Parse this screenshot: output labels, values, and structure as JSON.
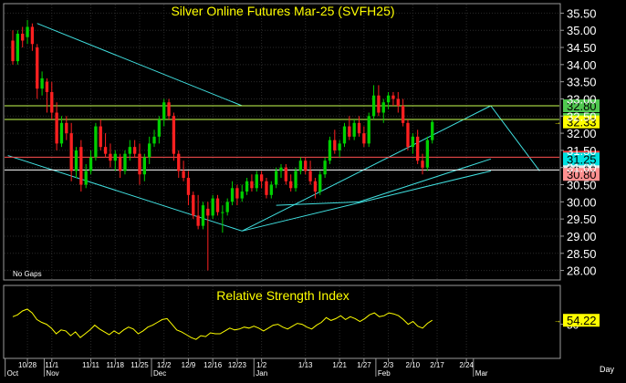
{
  "chart_data": [
    {
      "type": "candlestick",
      "title": "Silver Online Futures Mar-25 (SVFH25)",
      "note": "No Gaps",
      "ylim": [
        27.75,
        35.75
      ],
      "y_ticks": [
        {
          "value": 35.5,
          "label": "35.50"
        },
        {
          "value": 35.0,
          "label": "35.00"
        },
        {
          "value": 34.5,
          "label": "34.50"
        },
        {
          "value": 34.0,
          "label": "34.00"
        },
        {
          "value": 33.5,
          "label": "33.50"
        },
        {
          "value": 33.0,
          "label": "33.00"
        },
        {
          "value": 32.5,
          "label": "32.50"
        },
        {
          "value": 32.0,
          "label": "32.00"
        },
        {
          "value": 31.5,
          "label": "31.50"
        },
        {
          "value": 31.0,
          "label": "31.00"
        },
        {
          "value": 30.5,
          "label": "30.50"
        },
        {
          "value": 30.0,
          "label": "30.00"
        },
        {
          "value": 29.5,
          "label": "29.50"
        },
        {
          "value": 29.0,
          "label": "29.00"
        },
        {
          "value": 28.5,
          "label": "28.50"
        },
        {
          "value": 28.0,
          "label": "28.00"
        }
      ],
      "grid": true,
      "bullish_color": "#00d000",
      "bearish_color": "#ff2020",
      "candles": [
        {
          "o": 34.7,
          "h": 35.0,
          "l": 34.0,
          "c": 34.1
        },
        {
          "o": 34.1,
          "h": 35.0,
          "l": 34.0,
          "c": 34.9
        },
        {
          "o": 34.9,
          "h": 35.1,
          "l": 34.5,
          "c": 34.7
        },
        {
          "o": 34.8,
          "h": 35.3,
          "l": 34.6,
          "c": 35.1
        },
        {
          "o": 35.1,
          "h": 35.2,
          "l": 34.4,
          "c": 34.6
        },
        {
          "o": 34.5,
          "h": 34.6,
          "l": 33.0,
          "c": 33.3
        },
        {
          "o": 33.3,
          "h": 33.8,
          "l": 33.1,
          "c": 33.6
        },
        {
          "o": 33.5,
          "h": 33.6,
          "l": 32.6,
          "c": 33.2
        },
        {
          "o": 33.2,
          "h": 33.5,
          "l": 32.4,
          "c": 32.6
        },
        {
          "o": 32.6,
          "h": 32.9,
          "l": 31.5,
          "c": 31.7
        },
        {
          "o": 31.7,
          "h": 32.5,
          "l": 31.6,
          "c": 32.3
        },
        {
          "o": 32.3,
          "h": 32.5,
          "l": 31.8,
          "c": 32.0
        },
        {
          "o": 32.0,
          "h": 32.3,
          "l": 30.6,
          "c": 30.9
        },
        {
          "o": 30.9,
          "h": 31.6,
          "l": 30.7,
          "c": 31.5
        },
        {
          "o": 31.6,
          "h": 31.8,
          "l": 30.3,
          "c": 30.5
        },
        {
          "o": 30.5,
          "h": 31.1,
          "l": 30.4,
          "c": 30.9
        },
        {
          "o": 30.9,
          "h": 31.5,
          "l": 30.8,
          "c": 31.3
        },
        {
          "o": 31.3,
          "h": 32.3,
          "l": 31.2,
          "c": 32.2
        },
        {
          "o": 32.2,
          "h": 32.4,
          "l": 31.5,
          "c": 31.6
        },
        {
          "o": 31.6,
          "h": 32.0,
          "l": 31.3,
          "c": 31.4
        },
        {
          "o": 31.4,
          "h": 31.7,
          "l": 31.0,
          "c": 31.2
        },
        {
          "o": 31.2,
          "h": 31.5,
          "l": 30.9,
          "c": 31.4
        },
        {
          "o": 31.3,
          "h": 31.4,
          "l": 30.7,
          "c": 30.9
        },
        {
          "o": 30.9,
          "h": 31.5,
          "l": 30.8,
          "c": 31.4
        },
        {
          "o": 31.4,
          "h": 31.8,
          "l": 31.2,
          "c": 31.6
        },
        {
          "o": 31.6,
          "h": 31.8,
          "l": 31.3,
          "c": 31.4
        },
        {
          "o": 31.4,
          "h": 31.7,
          "l": 30.5,
          "c": 30.8
        },
        {
          "o": 30.8,
          "h": 31.4,
          "l": 30.6,
          "c": 31.3
        },
        {
          "o": 31.3,
          "h": 31.9,
          "l": 31.1,
          "c": 31.7
        },
        {
          "o": 31.7,
          "h": 32.1,
          "l": 31.6,
          "c": 31.9
        },
        {
          "o": 31.9,
          "h": 32.5,
          "l": 31.7,
          "c": 32.4
        },
        {
          "o": 32.4,
          "h": 33.0,
          "l": 32.2,
          "c": 32.9
        },
        {
          "o": 32.9,
          "h": 33.0,
          "l": 32.4,
          "c": 32.5
        },
        {
          "o": 32.5,
          "h": 32.6,
          "l": 31.2,
          "c": 31.4
        },
        {
          "o": 31.4,
          "h": 31.5,
          "l": 30.7,
          "c": 30.9
        },
        {
          "o": 30.9,
          "h": 31.2,
          "l": 30.6,
          "c": 30.7
        },
        {
          "o": 30.7,
          "h": 30.9,
          "l": 29.9,
          "c": 30.2
        },
        {
          "o": 30.2,
          "h": 30.3,
          "l": 29.5,
          "c": 29.6
        },
        {
          "o": 29.6,
          "h": 30.2,
          "l": 29.2,
          "c": 29.3
        },
        {
          "o": 29.3,
          "h": 30.0,
          "l": 29.2,
          "c": 29.9
        },
        {
          "o": 29.8,
          "h": 30.0,
          "l": 28.0,
          "c": 29.6
        },
        {
          "o": 29.6,
          "h": 30.2,
          "l": 29.5,
          "c": 30.1
        },
        {
          "o": 30.1,
          "h": 30.2,
          "l": 29.6,
          "c": 29.7
        },
        {
          "o": 29.7,
          "h": 29.9,
          "l": 29.1,
          "c": 29.7
        },
        {
          "o": 29.7,
          "h": 30.1,
          "l": 29.6,
          "c": 30.0
        },
        {
          "o": 30.0,
          "h": 30.6,
          "l": 29.9,
          "c": 30.4
        },
        {
          "o": 30.4,
          "h": 30.5,
          "l": 29.9,
          "c": 30.1
        },
        {
          "o": 30.1,
          "h": 30.5,
          "l": 30.0,
          "c": 30.3
        },
        {
          "o": 30.3,
          "h": 30.7,
          "l": 30.2,
          "c": 30.6
        },
        {
          "o": 30.6,
          "h": 30.8,
          "l": 30.3,
          "c": 30.4
        },
        {
          "o": 30.4,
          "h": 30.9,
          "l": 30.3,
          "c": 30.8
        },
        {
          "o": 30.8,
          "h": 30.9,
          "l": 30.4,
          "c": 30.6
        },
        {
          "o": 30.6,
          "h": 30.7,
          "l": 30.1,
          "c": 30.2
        },
        {
          "o": 30.2,
          "h": 30.6,
          "l": 30.1,
          "c": 30.5
        },
        {
          "o": 30.5,
          "h": 31.0,
          "l": 30.4,
          "c": 30.9
        },
        {
          "o": 30.9,
          "h": 31.1,
          "l": 30.7,
          "c": 31.0
        },
        {
          "o": 31.0,
          "h": 31.1,
          "l": 30.5,
          "c": 30.6
        },
        {
          "o": 30.6,
          "h": 30.8,
          "l": 30.3,
          "c": 30.4
        },
        {
          "o": 30.4,
          "h": 31.0,
          "l": 30.3,
          "c": 30.9
        },
        {
          "o": 30.9,
          "h": 31.3,
          "l": 30.8,
          "c": 31.2
        },
        {
          "o": 31.2,
          "h": 31.3,
          "l": 30.8,
          "c": 30.9
        },
        {
          "o": 30.9,
          "h": 31.2,
          "l": 30.5,
          "c": 30.6
        },
        {
          "o": 30.6,
          "h": 30.7,
          "l": 30.1,
          "c": 30.3
        },
        {
          "o": 30.3,
          "h": 30.9,
          "l": 30.2,
          "c": 30.8
        },
        {
          "o": 30.8,
          "h": 31.3,
          "l": 30.7,
          "c": 31.2
        },
        {
          "o": 31.2,
          "h": 31.9,
          "l": 31.1,
          "c": 31.8
        },
        {
          "o": 31.8,
          "h": 32.1,
          "l": 31.4,
          "c": 31.5
        },
        {
          "o": 31.5,
          "h": 31.8,
          "l": 31.3,
          "c": 31.7
        },
        {
          "o": 31.7,
          "h": 32.3,
          "l": 31.6,
          "c": 32.2
        },
        {
          "o": 32.2,
          "h": 32.5,
          "l": 31.8,
          "c": 31.9
        },
        {
          "o": 31.9,
          "h": 32.4,
          "l": 31.8,
          "c": 32.3
        },
        {
          "o": 32.3,
          "h": 32.5,
          "l": 31.9,
          "c": 32.0
        },
        {
          "o": 32.0,
          "h": 32.2,
          "l": 31.6,
          "c": 31.7
        },
        {
          "o": 31.7,
          "h": 32.6,
          "l": 31.6,
          "c": 32.5
        },
        {
          "o": 32.5,
          "h": 33.4,
          "l": 32.4,
          "c": 33.1
        },
        {
          "o": 33.1,
          "h": 33.4,
          "l": 32.5,
          "c": 32.6
        },
        {
          "o": 32.6,
          "h": 33.0,
          "l": 32.3,
          "c": 32.9
        },
        {
          "o": 32.9,
          "h": 33.2,
          "l": 32.7,
          "c": 33.1
        },
        {
          "o": 33.1,
          "h": 33.2,
          "l": 32.8,
          "c": 33.0
        },
        {
          "o": 33.0,
          "h": 33.2,
          "l": 32.6,
          "c": 32.8
        },
        {
          "o": 32.8,
          "h": 33.0,
          "l": 32.2,
          "c": 32.3
        },
        {
          "o": 32.3,
          "h": 32.4,
          "l": 31.5,
          "c": 31.6
        },
        {
          "o": 31.6,
          "h": 32.0,
          "l": 31.4,
          "c": 31.9
        },
        {
          "o": 31.9,
          "h": 32.1,
          "l": 31.1,
          "c": 31.2
        },
        {
          "o": 31.2,
          "h": 31.4,
          "l": 30.8,
          "c": 31.0
        },
        {
          "o": 31.0,
          "h": 31.9,
          "l": 30.9,
          "c": 31.8
        },
        {
          "o": 31.8,
          "h": 32.4,
          "l": 31.7,
          "c": 32.33
        }
      ],
      "horizontal_lines": [
        {
          "value": 32.8,
          "label": "32.80",
          "line_color": "#c8ff50",
          "badge_color": "#50c850"
        },
        {
          "value": 32.4,
          "label": "32.40",
          "line_color": "#c8ff50",
          "badge_color": "#50c850"
        },
        {
          "value": 31.3,
          "label": "31.30",
          "line_color": "#ff5050",
          "badge_color": "#ff4040"
        },
        {
          "value": 30.93,
          "label": "30.93",
          "line_color": "#ffffff",
          "badge_color": "#e8e8e8"
        }
      ],
      "badges": [
        {
          "value": 32.33,
          "label": "32.33",
          "color": "#ffff00"
        },
        {
          "value": 31.25,
          "label": "31.25",
          "color": "#00e0e0"
        },
        {
          "value": 30.8,
          "label": "30.80",
          "color": "#ff9090"
        }
      ],
      "trendlines": [
        {
          "from": {
            "bar": 6,
            "value": 35.2
          },
          "to": {
            "bar": 48,
            "value": 32.8
          }
        },
        {
          "from": {
            "bar": 0,
            "value": 31.35
          },
          "to": {
            "bar": 48,
            "value": 29.15
          }
        },
        {
          "from": {
            "bar": 48,
            "value": 29.15
          },
          "to": {
            "bar": 99,
            "value": 30.9
          }
        },
        {
          "from": {
            "bar": 48,
            "value": 29.15
          },
          "to": {
            "bar": 99,
            "value": 32.8
          }
        },
        {
          "from": {
            "bar": 55,
            "value": 29.9
          },
          "to": {
            "bar": 72,
            "value": 30.0
          }
        },
        {
          "from": {
            "bar": 72,
            "value": 30.0
          },
          "to": {
            "bar": 99,
            "value": 31.25
          }
        },
        {
          "from": {
            "bar": 99,
            "value": 32.8
          },
          "to": {
            "bar": 109,
            "value": 30.9
          }
        }
      ],
      "trendline_color": "#40e0e0"
    },
    {
      "type": "line",
      "title": "Relative Strength Index",
      "ylim": [
        15,
        90
      ],
      "y_tick_labels": [
        "50"
      ],
      "series": [
        {
          "color": "#ffff00",
          "values": [
            58,
            60,
            64,
            66,
            62,
            55,
            52,
            50,
            46,
            40,
            44,
            43,
            38,
            42,
            36,
            40,
            44,
            49,
            45,
            42,
            39,
            43,
            40,
            44,
            47,
            45,
            40,
            43,
            47,
            49,
            52,
            55,
            56,
            50,
            44,
            42,
            39,
            36,
            34,
            38,
            37,
            41,
            40,
            40,
            43,
            46,
            44,
            45,
            47,
            46,
            48,
            46,
            43,
            46,
            49,
            50,
            47,
            45,
            48,
            51,
            50,
            47,
            45,
            49,
            52,
            57,
            54,
            56,
            59,
            55,
            58,
            56,
            53,
            56,
            60,
            62,
            58,
            59,
            62,
            61,
            59,
            55,
            50,
            53,
            48,
            46,
            51,
            54.22
          ]
        }
      ],
      "last_value_label": "54.22"
    }
  ],
  "x_axis": {
    "ticks": [
      {
        "bar": 4,
        "label": "10/28"
      },
      {
        "bar": 9,
        "label": "11/1"
      },
      {
        "bar": 17,
        "label": "11/11"
      },
      {
        "bar": 22,
        "label": "11/18"
      },
      {
        "bar": 27,
        "label": "11/25"
      },
      {
        "bar": 32,
        "label": "12/2"
      },
      {
        "bar": 37,
        "label": "12/9"
      },
      {
        "bar": 42,
        "label": "12/16"
      },
      {
        "bar": 47,
        "label": "12/23"
      },
      {
        "bar": 52,
        "label": "1/2"
      },
      {
        "bar": 61,
        "label": "1/13"
      },
      {
        "bar": 68,
        "label": "1/21"
      },
      {
        "bar": 73,
        "label": "1/27"
      },
      {
        "bar": 78,
        "label": "2/3"
      },
      {
        "bar": 83,
        "label": "2/10"
      },
      {
        "bar": 88,
        "label": "2/17"
      },
      {
        "bar": 94,
        "label": "2/24"
      }
    ],
    "months": [
      {
        "bar": 0,
        "label": "Oct"
      },
      {
        "bar": 8,
        "label": "Nov"
      },
      {
        "bar": 30,
        "label": "Dec"
      },
      {
        "bar": 51,
        "label": "Jan"
      },
      {
        "bar": 76,
        "label": "Feb"
      },
      {
        "bar": 96,
        "label": "Mar"
      }
    ],
    "period_label": "Day"
  }
}
